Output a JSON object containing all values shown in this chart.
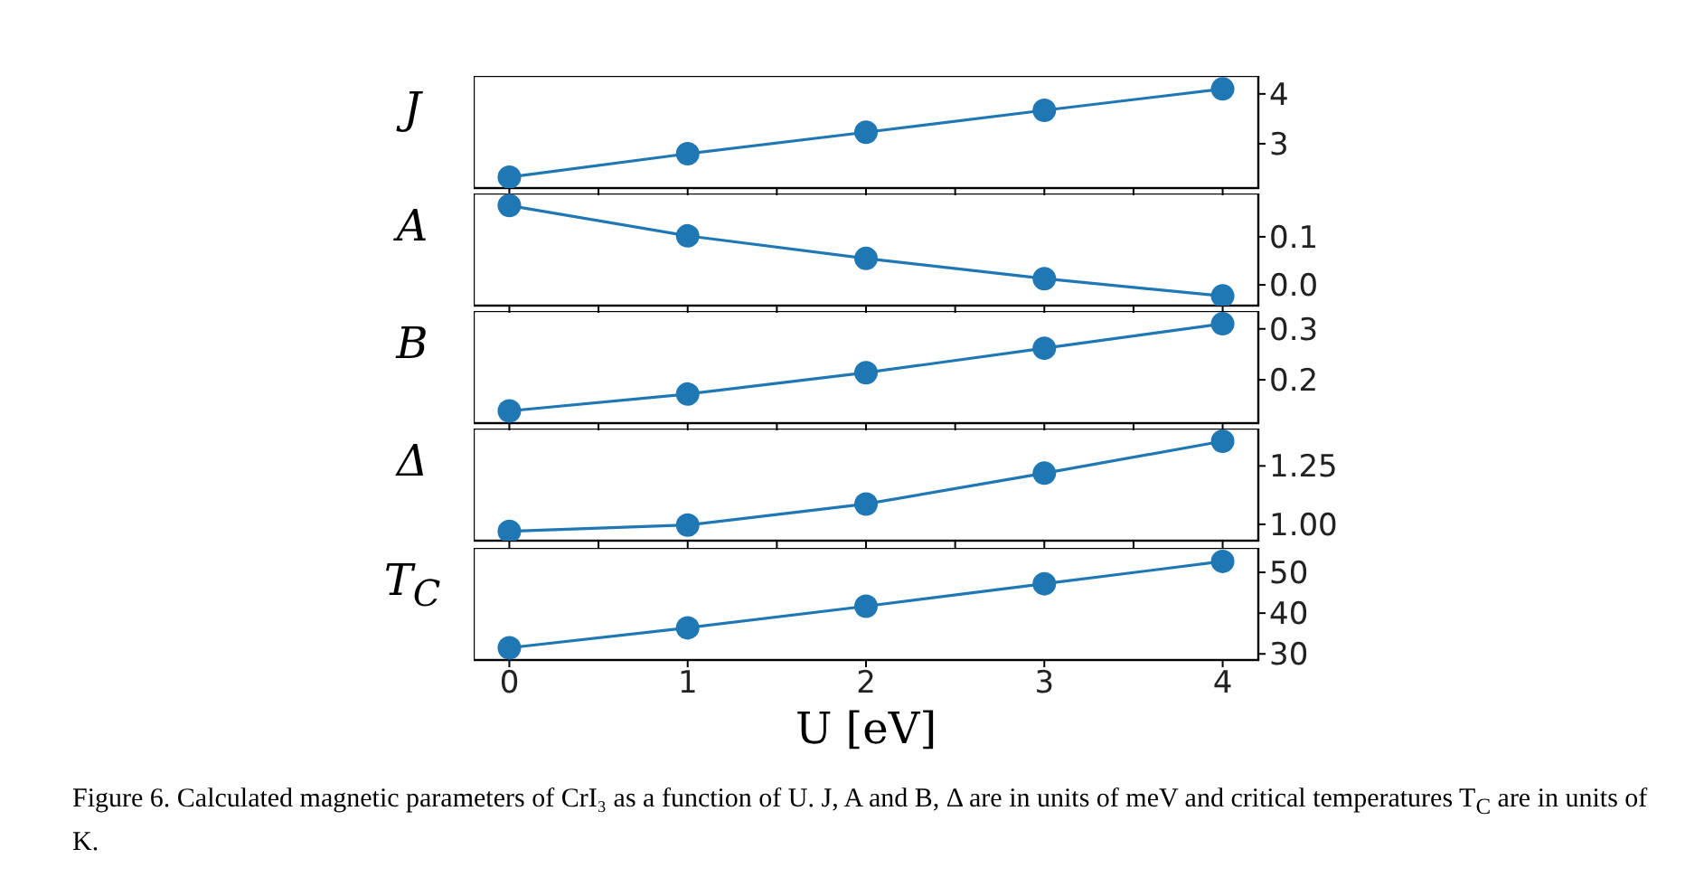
{
  "chart_data": [
    {
      "type": "line",
      "ylabel": "J",
      "x": [
        0,
        1,
        2,
        3,
        4
      ],
      "series": [
        {
          "color": "#1f77b4",
          "values": [
            2.33,
            2.8,
            3.23,
            3.67,
            4.1
          ]
        }
      ],
      "xlim": [
        -0.2,
        4.2
      ],
      "xticks": [
        0,
        {
          "value": 0.5,
          "label": null
        },
        1,
        {
          "value": 1.5,
          "label": null
        },
        2,
        {
          "value": 2.5,
          "label": null
        },
        3,
        {
          "value": 3.5,
          "label": null
        },
        4
      ],
      "ylim": [
        2.11,
        4.36
      ],
      "yticks": [
        3,
        4
      ],
      "tick_labels": "y",
      "marker": "circle",
      "grid": false
    },
    {
      "type": "line",
      "ylabel": "A",
      "x": [
        0,
        1,
        2,
        3,
        4
      ],
      "series": [
        {
          "color": "#1f77b4",
          "values": [
            0.165,
            0.102,
            0.055,
            0.013,
            -0.023
          ]
        }
      ],
      "xlim": [
        -0.2,
        4.2
      ],
      "xticks": [
        0,
        {
          "value": 0.5,
          "label": null
        },
        1,
        {
          "value": 1.5,
          "label": null
        },
        2,
        {
          "value": 2.5,
          "label": null
        },
        3,
        {
          "value": 3.5,
          "label": null
        },
        4
      ],
      "ylim": [
        -0.043,
        0.19
      ],
      "yticks": [
        {
          "value": 0,
          "label": "0.0"
        },
        0.1
      ],
      "tick_labels": "y",
      "marker": "circle",
      "grid": false
    },
    {
      "type": "line",
      "ylabel": "B",
      "x": [
        0,
        1,
        2,
        3,
        4
      ],
      "series": [
        {
          "color": "#1f77b4",
          "values": [
            0.139,
            0.172,
            0.214,
            0.262,
            0.31
          ]
        }
      ],
      "xlim": [
        -0.2,
        4.2
      ],
      "xticks": [
        0,
        {
          "value": 0.5,
          "label": null
        },
        1,
        {
          "value": 1.5,
          "label": null
        },
        2,
        {
          "value": 2.5,
          "label": null
        },
        3,
        {
          "value": 3.5,
          "label": null
        },
        4
      ],
      "ylim": [
        0.115,
        0.335
      ],
      "yticks": [
        0.2,
        0.3
      ],
      "tick_labels": "y",
      "marker": "circle",
      "grid": false
    },
    {
      "type": "line",
      "ylabel": "Δ",
      "x": [
        0,
        1,
        2,
        3,
        4
      ],
      "series": [
        {
          "color": "#1f77b4",
          "values": [
            0.97,
            0.997,
            1.087,
            1.219,
            1.356
          ]
        }
      ],
      "xlim": [
        -0.2,
        4.2
      ],
      "xticks": [
        0,
        {
          "value": 0.5,
          "label": null
        },
        1,
        {
          "value": 1.5,
          "label": null
        },
        2,
        {
          "value": 2.5,
          "label": null
        },
        3,
        {
          "value": 3.5,
          "label": null
        },
        4
      ],
      "ylim": [
        0.93,
        1.41
      ],
      "yticks": [
        {
          "value": 1,
          "label": "1.00"
        },
        1.25
      ],
      "tick_labels": "y",
      "marker": "circle",
      "grid": false
    },
    {
      "type": "line",
      "ylabel": "T$_{C}$",
      "xlabel": "U [eV]",
      "x": [
        0,
        1,
        2,
        3,
        4
      ],
      "series": [
        {
          "color": "#1f77b4",
          "values": [
            31.5,
            36.4,
            41.7,
            47.2,
            52.7
          ]
        }
      ],
      "xlim": [
        -0.2,
        4.2
      ],
      "xticks": [
        0,
        1,
        2,
        3,
        4
      ],
      "ylim": [
        28.5,
        56
      ],
      "yticks": [
        30,
        40,
        50
      ],
      "marker": "circle",
      "grid": false,
      "annotations": [
        "Figure 6.  Calculated magnetic parameters of CrI₃ as a function of U. J, A and B, Δ are in units of meV and critical temperatures T$_{C}$ are in units of K."
      ]
    }
  ]
}
